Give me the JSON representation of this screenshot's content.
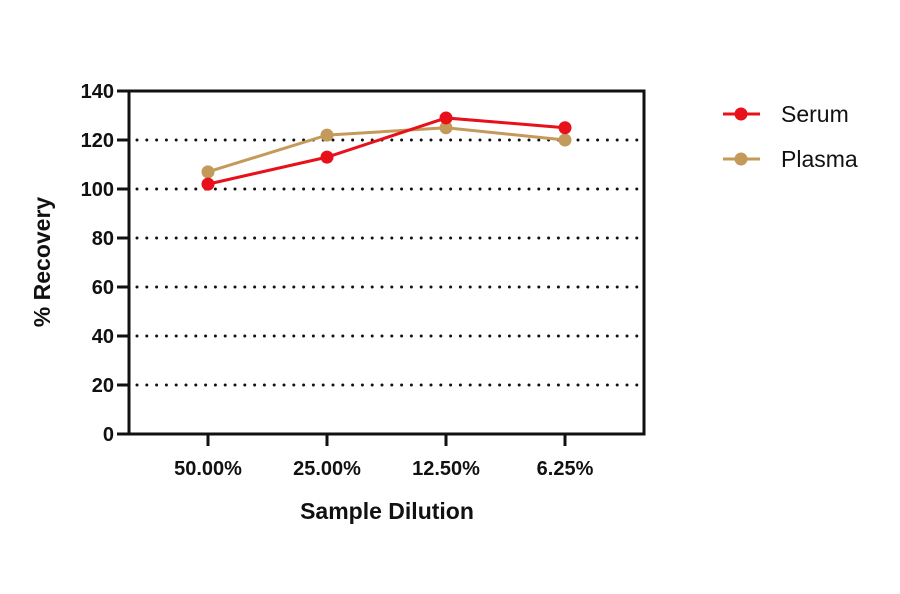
{
  "chart_data": {
    "type": "line",
    "title": "",
    "xlabel": "Sample Dilution",
    "ylabel": "% Recovery",
    "categories": [
      "50.00%",
      "25.00%",
      "12.50%",
      "6.25%"
    ],
    "series": [
      {
        "name": "Serum",
        "color": "#e8101a",
        "values": [
          102,
          113,
          129,
          125
        ]
      },
      {
        "name": "Plasma",
        "color": "#c49a5a",
        "values": [
          107,
          122,
          125,
          120
        ]
      }
    ],
    "ylim": [
      0,
      140
    ],
    "yticks": [
      0,
      20,
      40,
      60,
      80,
      100,
      120,
      140
    ],
    "grid": {
      "y": true,
      "style": "dotted",
      "lines": [
        20,
        40,
        60,
        80,
        100,
        120
      ]
    },
    "legend_position": "right-top"
  },
  "axes": {
    "x_title": "Sample Dilution",
    "y_title": "% Recovery"
  },
  "legend": {
    "items": [
      {
        "label": "Serum",
        "color": "#e8101a"
      },
      {
        "label": "Plasma",
        "color": "#c49a5a"
      }
    ]
  }
}
